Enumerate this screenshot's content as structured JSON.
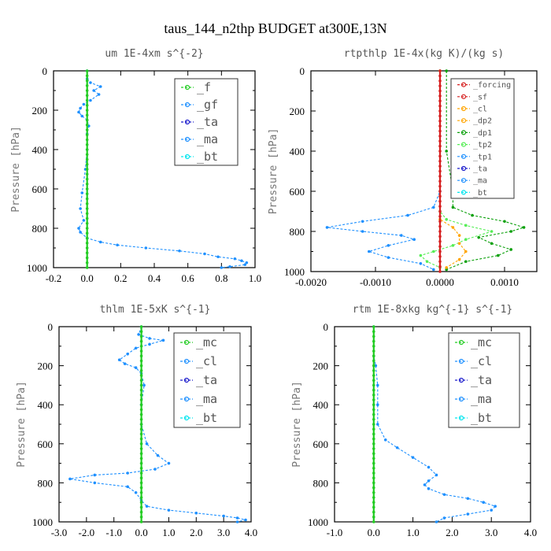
{
  "figure_title": "taus_144_n2thp  BUDGET at300E,13N",
  "colors": {
    "green": "#22cc22",
    "blue": "#1e90ff",
    "navy": "#1a1acc",
    "red": "#d62020",
    "orange": "#ffa500",
    "cyan": "#00e5ee",
    "dkgreen": "#0aa00a",
    "ltgreen": "#55ee55"
  },
  "chart_data": [
    {
      "type": "line",
      "title": "um  1E-4xm s^{-2}",
      "xlabel": "",
      "ylabel": "Pressure [hPa]",
      "xlim": [
        -0.2,
        1.0
      ],
      "ylim": [
        1000,
        0
      ],
      "x_ticks": [
        "-0.2",
        "0.0",
        "0.2",
        "0.4",
        "0.6",
        "0.8",
        "1.0"
      ],
      "y_ticks": [
        "0",
        "200",
        "400",
        "600",
        "800",
        "1000"
      ],
      "legend": [
        "_f",
        "_gf",
        "_ta",
        "_ma",
        "_bt"
      ],
      "series": [
        {
          "name": "_gf",
          "color": "blue",
          "points": [
            [
              0.0,
              0
            ],
            [
              0.0,
              40
            ],
            [
              0.02,
              60
            ],
            [
              0.08,
              80
            ],
            [
              0.04,
              100
            ],
            [
              0.07,
              120
            ],
            [
              0.02,
              150
            ],
            [
              -0.02,
              170
            ],
            [
              -0.04,
              190
            ],
            [
              -0.05,
              210
            ],
            [
              -0.03,
              230
            ],
            [
              0.0,
              250
            ],
            [
              0.01,
              280
            ],
            [
              0.0,
              320
            ],
            [
              0.0,
              400
            ],
            [
              -0.01,
              500
            ],
            [
              -0.03,
              620
            ],
            [
              -0.04,
              700
            ],
            [
              -0.02,
              760
            ],
            [
              -0.05,
              800
            ],
            [
              -0.04,
              820
            ],
            [
              0.0,
              850
            ],
            [
              0.08,
              870
            ],
            [
              0.18,
              885
            ],
            [
              0.35,
              900
            ],
            [
              0.55,
              915
            ],
            [
              0.7,
              930
            ],
            [
              0.78,
              945
            ],
            [
              0.88,
              955
            ],
            [
              0.92,
              965
            ],
            [
              0.95,
              975
            ],
            [
              0.94,
              985
            ],
            [
              0.85,
              995
            ],
            [
              0.8,
              1000
            ]
          ]
        },
        {
          "name": "_f",
          "color": "green",
          "points": [
            [
              0.0,
              0
            ],
            [
              0.0,
              1000
            ]
          ]
        }
      ]
    },
    {
      "type": "line",
      "title": "rtpthlp  1E-4x(kg K)/(kg s)",
      "xlabel": "",
      "ylabel": "Pressure [hPa]",
      "xlim": [
        -0.002,
        0.0015
      ],
      "ylim": [
        1000,
        0
      ],
      "x_ticks": [
        "-0.0020",
        "-0.0010",
        "0.0000",
        "0.0010"
      ],
      "y_ticks": [
        "0",
        "200",
        "400",
        "600",
        "800",
        "1000"
      ],
      "legend": [
        "_forcing",
        "_sf",
        "_cl",
        "_dp2",
        "_dp1",
        "_tp2",
        "_tp1",
        "_ta",
        "_ma",
        "_bt"
      ],
      "series": [
        {
          "name": "_tp1",
          "color": "blue",
          "points": [
            [
              0.0,
              0
            ],
            [
              0.0,
              600
            ],
            [
              -0.0001,
              680
            ],
            [
              -0.0005,
              720
            ],
            [
              -0.0012,
              750
            ],
            [
              -0.00175,
              780
            ],
            [
              -0.0012,
              800
            ],
            [
              -0.0006,
              820
            ],
            [
              -0.0004,
              840
            ],
            [
              -0.0008,
              870
            ],
            [
              -0.0011,
              900
            ],
            [
              -0.0008,
              930
            ],
            [
              -0.0003,
              960
            ],
            [
              -0.0001,
              990
            ]
          ]
        },
        {
          "name": "_dp1",
          "color": "dkgreen",
          "points": [
            [
              0.0001,
              0
            ],
            [
              0.0001,
              400
            ],
            [
              0.0002,
              600
            ],
            [
              0.0002,
              680
            ],
            [
              0.0005,
              720
            ],
            [
              0.001,
              750
            ],
            [
              0.0013,
              780
            ],
            [
              0.0011,
              800
            ],
            [
              0.0006,
              830
            ],
            [
              0.0008,
              860
            ],
            [
              0.0011,
              890
            ],
            [
              0.0009,
              920
            ],
            [
              0.0004,
              950
            ],
            [
              0.0001,
              990
            ]
          ]
        },
        {
          "name": "_tp2",
          "color": "ltgreen",
          "points": [
            [
              0.0,
              0
            ],
            [
              0.0,
              700
            ],
            [
              0.0001,
              740
            ],
            [
              0.0004,
              770
            ],
            [
              0.0008,
              800
            ],
            [
              0.0004,
              840
            ],
            [
              0.0002,
              870
            ],
            [
              -0.0001,
              900
            ],
            [
              -0.0003,
              920
            ],
            [
              -0.0002,
              950
            ],
            [
              0.0,
              980
            ]
          ]
        },
        {
          "name": "_cl",
          "color": "orange",
          "points": [
            [
              0.0,
              0
            ],
            [
              0.0,
              740
            ],
            [
              0.0002,
              780
            ],
            [
              0.0003,
              820
            ],
            [
              0.0003,
              860
            ],
            [
              0.0004,
              900
            ],
            [
              0.0003,
              940
            ],
            [
              0.0001,
              980
            ]
          ]
        },
        {
          "name": "_forcing",
          "color": "red",
          "points": [
            [
              0.0,
              0
            ],
            [
              0.0,
              1000
            ]
          ]
        }
      ]
    },
    {
      "type": "line",
      "title": "thlm  1E-5xK s^{-1}",
      "xlabel": "",
      "ylabel": "Pressure [hPa]",
      "xlim": [
        -3.0,
        4.0
      ],
      "ylim": [
        1000,
        0
      ],
      "x_ticks": [
        "-3.0",
        "-2.0",
        "-1.0",
        "0.0",
        "1.0",
        "2.0",
        "3.0",
        "4.0"
      ],
      "y_ticks": [
        "0",
        "200",
        "400",
        "600",
        "800",
        "1000"
      ],
      "legend": [
        "_mc",
        "_cl",
        "_ta",
        "_ma",
        "_bt"
      ],
      "series": [
        {
          "name": "_cl",
          "color": "blue",
          "points": [
            [
              0.0,
              0
            ],
            [
              -0.1,
              40
            ],
            [
              0.3,
              60
            ],
            [
              0.8,
              70
            ],
            [
              0.3,
              90
            ],
            [
              -0.2,
              110
            ],
            [
              -0.5,
              140
            ],
            [
              -0.8,
              170
            ],
            [
              -0.6,
              190
            ],
            [
              -0.2,
              210
            ],
            [
              0.0,
              240
            ],
            [
              0.1,
              300
            ],
            [
              0.0,
              400
            ],
            [
              0.0,
              500
            ],
            [
              0.2,
              600
            ],
            [
              0.6,
              660
            ],
            [
              1.0,
              700
            ],
            [
              0.5,
              730
            ],
            [
              -0.5,
              750
            ],
            [
              -1.7,
              760
            ],
            [
              -2.6,
              780
            ],
            [
              -1.7,
              800
            ],
            [
              -0.5,
              820
            ],
            [
              -0.2,
              850
            ],
            [
              0.0,
              890
            ],
            [
              0.2,
              920
            ],
            [
              1.0,
              940
            ],
            [
              2.0,
              955
            ],
            [
              3.0,
              970
            ],
            [
              3.5,
              980
            ],
            [
              3.8,
              990
            ],
            [
              3.5,
              1000
            ]
          ]
        },
        {
          "name": "_mc",
          "color": "green",
          "points": [
            [
              0.0,
              0
            ],
            [
              0.0,
              1000
            ]
          ]
        }
      ]
    },
    {
      "type": "line",
      "title": "rtm  1E-8xkg kg^{-1} s^{-1}",
      "xlabel": "",
      "ylabel": "Pressure [hPa]",
      "xlim": [
        -1.0,
        4.0
      ],
      "ylim": [
        1000,
        0
      ],
      "x_ticks": [
        "-1.0",
        "0.0",
        "1.0",
        "2.0",
        "3.0",
        "4.0"
      ],
      "y_ticks": [
        "0",
        "200",
        "400",
        "600",
        "800",
        "1000"
      ],
      "legend": [
        "_mc",
        "_cl",
        "_ta",
        "_ma",
        "_bt"
      ],
      "series": [
        {
          "name": "_cl",
          "color": "blue",
          "points": [
            [
              0.0,
              0
            ],
            [
              0.0,
              150
            ],
            [
              0.05,
              200
            ],
            [
              0.1,
              300
            ],
            [
              0.1,
              400
            ],
            [
              0.1,
              500
            ],
            [
              0.3,
              580
            ],
            [
              0.6,
              620
            ],
            [
              1.0,
              670
            ],
            [
              1.4,
              720
            ],
            [
              1.6,
              760
            ],
            [
              1.4,
              790
            ],
            [
              1.3,
              810
            ],
            [
              1.4,
              830
            ],
            [
              1.8,
              860
            ],
            [
              2.4,
              880
            ],
            [
              2.8,
              900
            ],
            [
              3.1,
              920
            ],
            [
              3.0,
              940
            ],
            [
              2.4,
              960
            ],
            [
              1.8,
              980
            ],
            [
              1.6,
              1000
            ]
          ]
        },
        {
          "name": "_mc",
          "color": "green",
          "points": [
            [
              0.0,
              0
            ],
            [
              0.0,
              1000
            ]
          ]
        }
      ]
    }
  ]
}
